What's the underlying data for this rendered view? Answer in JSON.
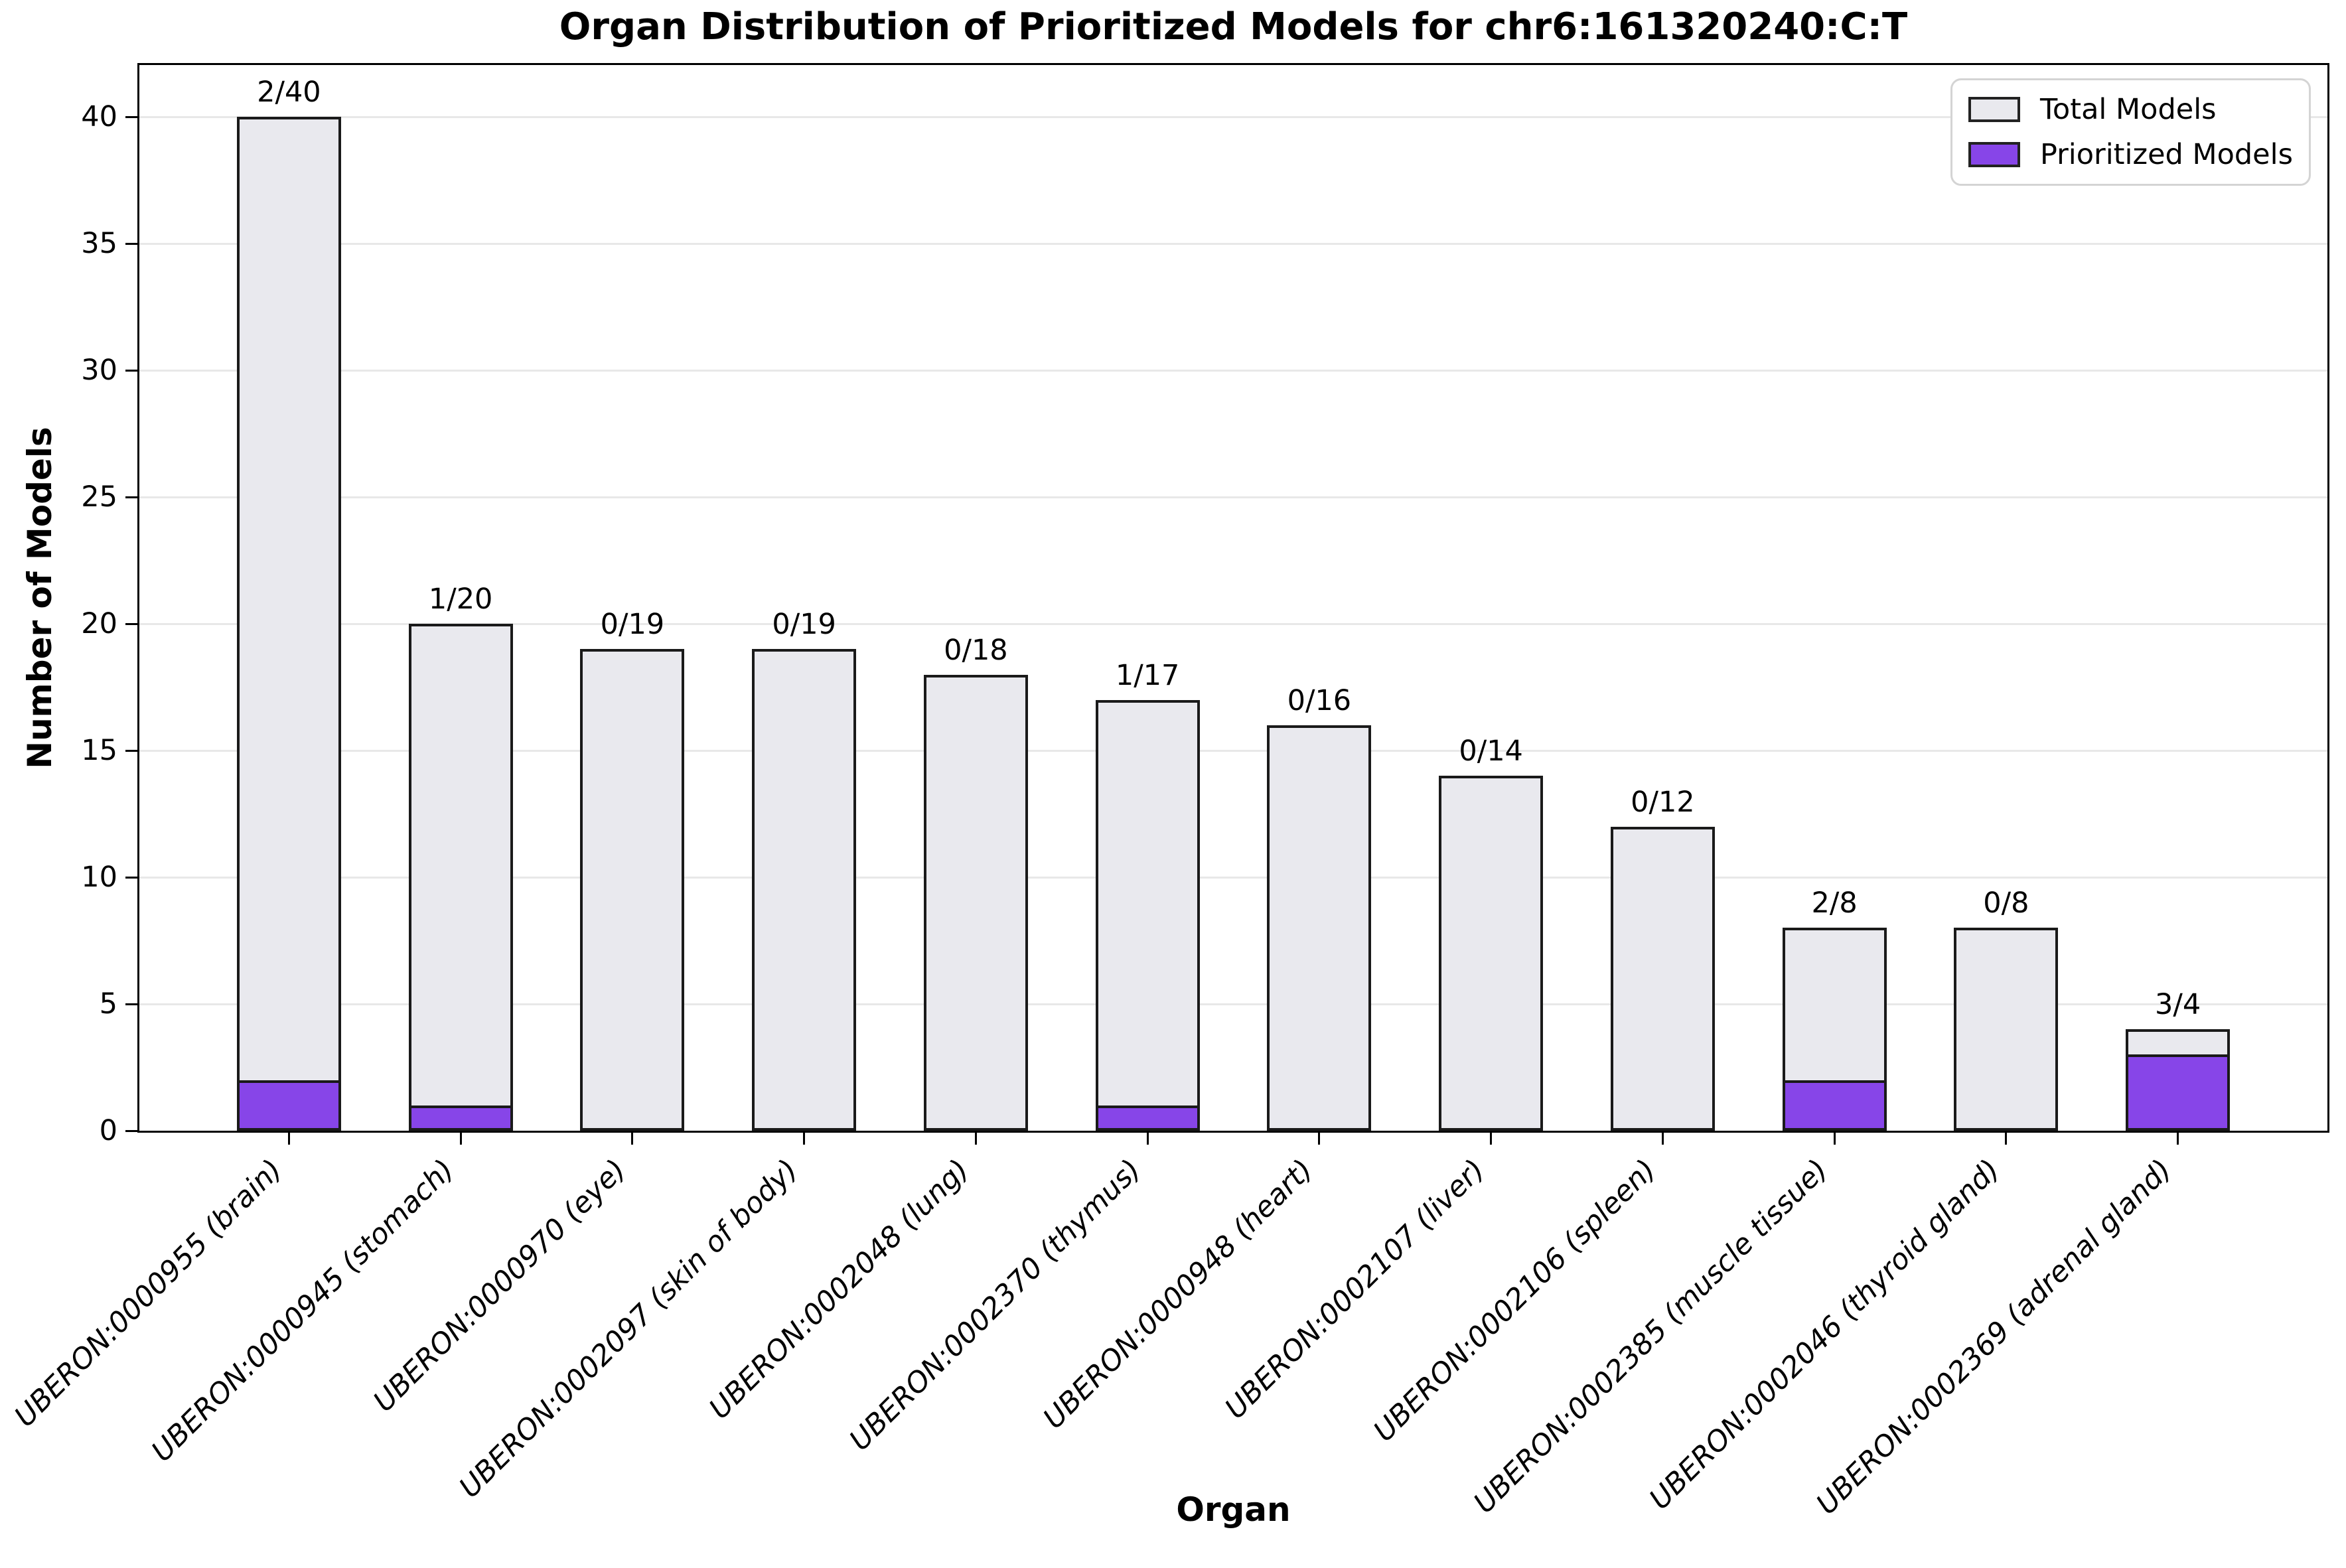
{
  "figure": {
    "background": "#ffffff"
  },
  "chart_data": {
    "type": "bar",
    "title": "Organ Distribution of Prioritized Models for chr6:161320240:C:T",
    "xlabel": "Organ",
    "ylabel": "Number of Models",
    "categories": [
      "UBERON:0000955 (brain)",
      "UBERON:0000945 (stomach)",
      "UBERON:0000970 (eye)",
      "UBERON:0002097 (skin of body)",
      "UBERON:0002048 (lung)",
      "UBERON:0002370 (thymus)",
      "UBERON:0000948 (heart)",
      "UBERON:0002107 (liver)",
      "UBERON:0002106 (spleen)",
      "UBERON:0002385 (muscle tissue)",
      "UBERON:0002046 (thyroid gland)",
      "UBERON:0002369 (adrenal gland)"
    ],
    "series": [
      {
        "name": "Total Models",
        "color": "#e9e9ee",
        "values": [
          40,
          20,
          19,
          19,
          18,
          17,
          16,
          14,
          12,
          8,
          8,
          4
        ]
      },
      {
        "name": "Prioritized Models",
        "color": "#8745e8",
        "values": [
          2,
          1,
          0,
          0,
          0,
          1,
          0,
          0,
          0,
          2,
          0,
          3
        ]
      }
    ],
    "bar_labels": [
      "2/40",
      "1/20",
      "0/19",
      "0/19",
      "0/18",
      "1/17",
      "0/16",
      "0/14",
      "0/12",
      "2/8",
      "0/8",
      "3/4"
    ],
    "y_ticks": [
      0,
      5,
      10,
      15,
      20,
      25,
      30,
      35,
      40
    ],
    "ylim": [
      0,
      42
    ],
    "grid": "horizontal-only",
    "grid_color": "#e8e8e8",
    "edge_color": "#1a1a1a",
    "legend": {
      "position": "upper-right",
      "entries": [
        "Total Models",
        "Prioritized Models"
      ]
    }
  }
}
